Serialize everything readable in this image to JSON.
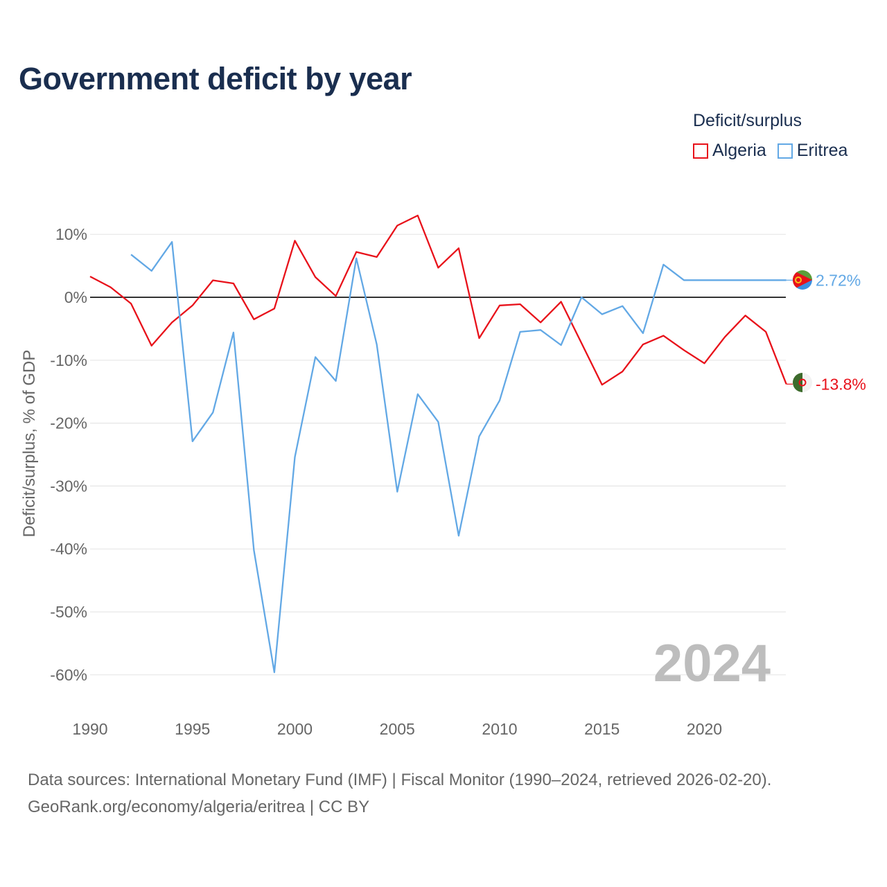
{
  "title": "Government deficit by year",
  "legend": {
    "title": "Deficit/surplus",
    "items": [
      {
        "label": "Algeria",
        "color": "#e8111a"
      },
      {
        "label": "Eritrea",
        "color": "#62a8e5"
      }
    ]
  },
  "sources": {
    "line1": "Data sources: International Monetary Fund (IMF) | Fiscal Monitor (1990–2024, retrieved 2026-02-20).",
    "line2": "GeoRank.org/economy/algeria/eritrea | CC BY"
  },
  "chart_data": {
    "type": "line",
    "title": "Government deficit by year",
    "xlabel": "",
    "ylabel": "Deficit/surplus, % of GDP",
    "xlim": [
      1990,
      2024
    ],
    "ylim": [
      -65,
      15
    ],
    "x_ticks": [
      1990,
      1995,
      2000,
      2005,
      2010,
      2015,
      2020
    ],
    "x_tick_labels": [
      "1990",
      "1995",
      "2000",
      "2005",
      "2010",
      "2015",
      "2020"
    ],
    "y_ticks": [
      10,
      0,
      -10,
      -20,
      -30,
      -40,
      -50,
      -60
    ],
    "y_tick_labels": [
      "10%",
      "0%",
      "-10%",
      "-20%",
      "-30%",
      "-40%",
      "-50%",
      "-60%"
    ],
    "grid": true,
    "zero_line": true,
    "watermark_year": "2024",
    "legend_position": "top-right",
    "series": [
      {
        "name": "Algeria",
        "color": "#e8111a",
        "end_label": "-13.8%",
        "x": [
          1990,
          1991,
          1992,
          1993,
          1994,
          1995,
          1996,
          1997,
          1998,
          1999,
          2000,
          2001,
          2002,
          2003,
          2004,
          2005,
          2006,
          2007,
          2008,
          2009,
          2010,
          2011,
          2012,
          2013,
          2014,
          2015,
          2016,
          2017,
          2018,
          2019,
          2020,
          2021,
          2022,
          2023,
          2024
        ],
        "values": [
          3.3,
          1.6,
          -1.0,
          -7.7,
          -4.0,
          -1.3,
          2.7,
          2.2,
          -3.5,
          -1.8,
          9.0,
          3.2,
          0.2,
          7.2,
          6.4,
          11.4,
          13.0,
          4.7,
          7.8,
          -6.5,
          -1.3,
          -1.1,
          -4.0,
          -0.7,
          -7.3,
          -13.9,
          -11.8,
          -7.5,
          -6.1,
          -8.4,
          -10.5,
          -6.3,
          -2.9,
          -5.5,
          -13.8
        ]
      },
      {
        "name": "Eritrea",
        "color": "#62a8e5",
        "end_label": "2.72%",
        "x": [
          1992,
          1993,
          1994,
          1995,
          1996,
          1997,
          1998,
          1999,
          2000,
          2001,
          2002,
          2003,
          2004,
          2005,
          2006,
          2007,
          2008,
          2009,
          2010,
          2011,
          2012,
          2013,
          2014,
          2015,
          2016,
          2017,
          2018,
          2019,
          2020,
          2021,
          2022,
          2023,
          2024
        ],
        "values": [
          6.8,
          4.2,
          8.8,
          -22.9,
          -18.3,
          -5.6,
          -40.2,
          -59.6,
          -25.4,
          -9.5,
          -13.3,
          6.2,
          -7.5,
          -30.9,
          -15.4,
          -19.8,
          -37.9,
          -22.1,
          -16.4,
          -5.5,
          -5.2,
          -7.6,
          0.0,
          -2.7,
          -1.4,
          -5.7,
          5.2,
          2.72,
          2.72,
          2.72,
          2.72,
          2.72,
          2.72
        ]
      }
    ]
  }
}
